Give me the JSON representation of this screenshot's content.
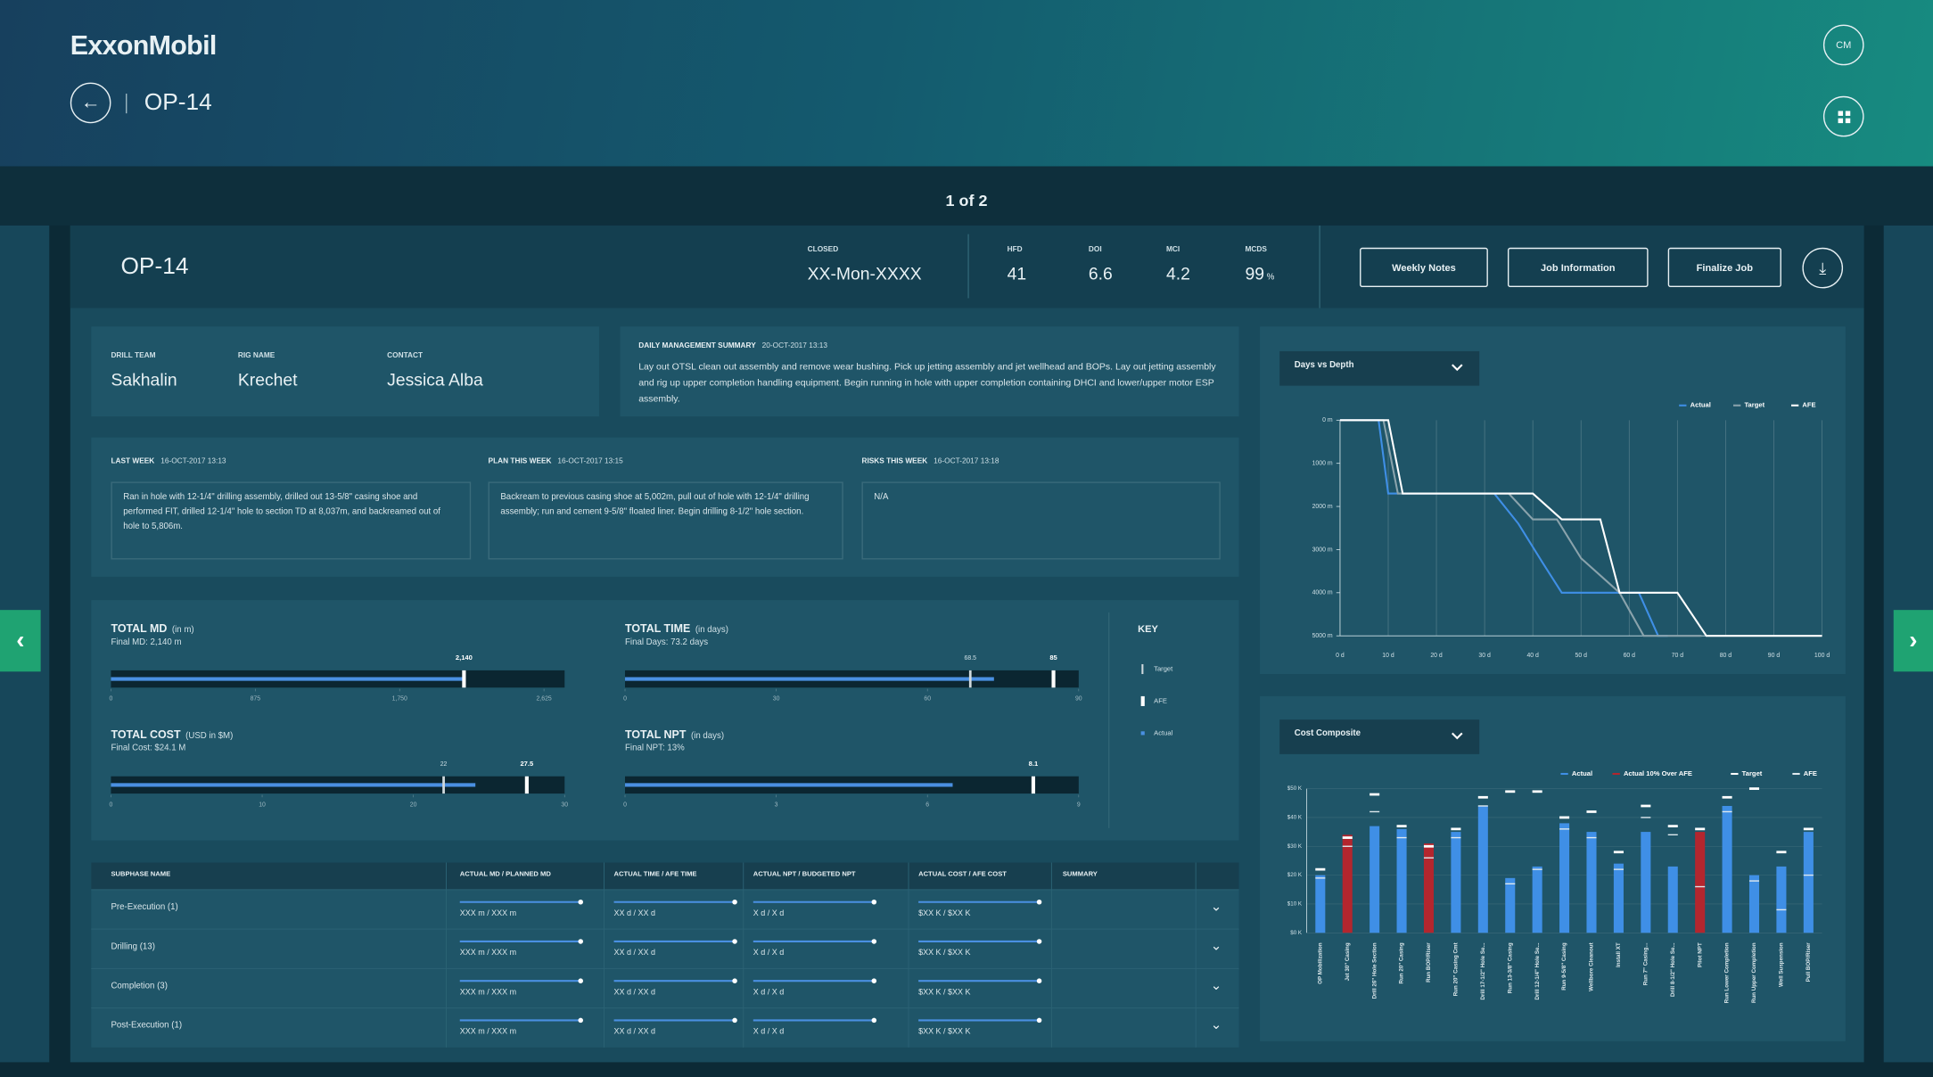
{
  "header": {
    "logo": "ExxonMobil",
    "title": "OP-14",
    "avatar": "CM"
  },
  "pager": "1 of 2",
  "summary_bar": {
    "well": "OP-14",
    "closed": {
      "label": "CLOSED",
      "value": "XX-Mon-XXXX"
    },
    "stats": [
      {
        "label": "HFD",
        "value": "41"
      },
      {
        "label": "DOI",
        "value": "6.6"
      },
      {
        "label": "MCI",
        "value": "4.2"
      },
      {
        "label": "MCDS",
        "value": "99",
        "unit": "%"
      }
    ],
    "buttons": [
      "Weekly Notes",
      "Job Information",
      "Finalize Job"
    ]
  },
  "team": [
    {
      "label": "DRILL TEAM",
      "value": "Sakhalin"
    },
    {
      "label": "RIG NAME",
      "value": "Krechet"
    },
    {
      "label": "CONTACT",
      "value": "Jessica Alba"
    }
  ],
  "daily_summary": {
    "label": "DAILY MANAGEMENT SUMMARY",
    "date": "20-OCT-2017 13:13",
    "text": "Lay out OTSL clean out assembly and remove wear bushing. Pick up jetting assembly and jet wellhead and BOPs. Lay out jetting assembly and rig up upper completion handling equipment. Begin running in hole with upper completion containing DHCI and lower/upper motor ESP assembly."
  },
  "weekly": [
    {
      "label": "LAST WEEK",
      "date": "16-OCT-2017 13:13",
      "text": "Ran in hole with 12-1/4\" drilling assembly, drilled out 13-5/8\" casing shoe and performed FIT, drilled 12-1/4\" hole to section TD at 8,037m, and backreamed out of hole to 5,806m."
    },
    {
      "label": "PLAN THIS WEEK",
      "date": "16-OCT-2017 13:15",
      "text": "Backream to previous casing shoe at 5,002m, pull out of hole with 12-1/4\" drilling assembly; run and cement 9-5/8\" floated liner. Begin drilling 8-1/2\" hole section."
    },
    {
      "label": "RISKS THIS WEEK",
      "date": "16-OCT-2017 13:18",
      "text": "N/A"
    }
  ],
  "progress": [
    {
      "title": "TOTAL MD",
      "unit": "(in m)",
      "subtitle": "Final MD: 2,140 m",
      "actual": 2140,
      "target": null,
      "afe": {
        "value": 2140,
        "label": "2,140"
      },
      "xlim": [
        0,
        2750
      ],
      "xticks": [
        0,
        875,
        {
          "value": 1750,
          "label": "1,750"
        },
        {
          "value": 2625,
          "label": "2,625"
        }
      ]
    },
    {
      "title": "TOTAL TIME",
      "unit": "(in days)",
      "subtitle": "Final Days: 73.2 days",
      "actual": 73.2,
      "target": 68.5,
      "afe": 85,
      "xlim": [
        0,
        90
      ],
      "xticks": [
        0,
        30,
        60,
        90
      ]
    },
    {
      "title": "TOTAL COST",
      "unit": "(USD in $M)",
      "subtitle": "Final Cost: $24.1 M",
      "actual": 24.1,
      "target": 22,
      "afe": 27.5,
      "xlim": [
        0,
        30
      ],
      "xticks": [
        0,
        10,
        20,
        30
      ]
    },
    {
      "title": "TOTAL NPT",
      "unit": "(in days)",
      "subtitle": "Final NPT: 13%",
      "actual": 6.5,
      "target": null,
      "afe": 8.1,
      "xlim": [
        0,
        9
      ],
      "xticks": [
        0,
        3,
        6,
        9
      ]
    }
  ],
  "key": {
    "title": "KEY",
    "items": [
      "Target",
      "AFE",
      "Actual"
    ]
  },
  "table": {
    "headers": [
      "SUBPHASE NAME",
      "ACTUAL MD / PLANNED MD",
      "ACTUAL TIME / AFE TIME",
      "ACTUAL NPT / BUDGETED NPT",
      "ACTUAL COST / AFE COST",
      "SUMMARY"
    ],
    "rows": [
      [
        "Pre-Execution (1)",
        "XXX m / XXX m",
        "XX d / XX d",
        "X d / X d",
        "$XX K / $XX K"
      ],
      [
        "Drilling (13)",
        "XXX m / XXX m",
        "XX d / XX d",
        "X d / X d",
        "$XX K / $XX K"
      ],
      [
        "Completion (3)",
        "XXX m / XXX m",
        "XX d / XX d",
        "X d / X d",
        "$XX K / $XX K"
      ],
      [
        "Post-Execution (1)",
        "XXX m / XXX m",
        "XX d / XX d",
        "X d / X d",
        "$XX K / $XX K"
      ]
    ]
  },
  "charts": {
    "days_vs_depth": {
      "type": "line",
      "dropdown": "Days vs Depth",
      "xlim": [
        0,
        100
      ],
      "xticks": [
        {
          "value": 0,
          "label": "0 d"
        },
        {
          "value": 10,
          "label": "10 d"
        },
        {
          "value": 20,
          "label": "20 d"
        },
        {
          "value": 30,
          "label": "30 d"
        },
        {
          "value": 40,
          "label": "40 d"
        },
        {
          "value": 50,
          "label": "50 d"
        },
        {
          "value": 60,
          "label": "60 d"
        },
        {
          "value": 70,
          "label": "70 d"
        },
        {
          "value": 80,
          "label": "80 d"
        },
        {
          "value": 90,
          "label": "90 d"
        },
        {
          "value": 100,
          "label": "100 d"
        }
      ],
      "ylim": [
        0,
        5000
      ],
      "y_inverted": true,
      "yticks": [
        {
          "value": 0,
          "label": "0 m"
        },
        {
          "value": 1000,
          "label": "1000 m"
        },
        {
          "value": 2000,
          "label": "2000 m"
        },
        {
          "value": 3000,
          "label": "3000 m"
        },
        {
          "value": 4000,
          "label": "4000 m"
        },
        {
          "value": 5000,
          "label": "5000 m"
        }
      ],
      "grid": true,
      "series": [
        {
          "name": "Actual",
          "color": "#3f8fe6",
          "x": [
            0,
            8,
            10,
            32,
            37,
            42,
            46,
            62,
            66,
            68
          ],
          "values": [
            0,
            0,
            1700,
            1700,
            2400,
            3300,
            4000,
            4000,
            5000,
            5000
          ]
        },
        {
          "name": "Target",
          "color": "#8aa3ac",
          "x": [
            0,
            9,
            12,
            35,
            40,
            45,
            50,
            58,
            63,
            75
          ],
          "values": [
            0,
            0,
            1700,
            1700,
            2300,
            2300,
            3200,
            4000,
            5000,
            5000
          ]
        },
        {
          "name": "AFE",
          "color": "#ffffff",
          "x": [
            0,
            10,
            13,
            40,
            46,
            54,
            58,
            70,
            76,
            100
          ],
          "values": [
            0,
            0,
            1700,
            1700,
            2300,
            2300,
            4000,
            4000,
            5000,
            5000
          ]
        }
      ]
    },
    "cost_composite": {
      "type": "bar",
      "dropdown": "Cost Composite",
      "categories": [
        "OP Mobilization",
        "Jet 30\" Casing",
        "Drill 26\" Hole Section",
        "Run 20\" Casing",
        "Run BOP/Riser",
        "Run 20\" Casing Cmt",
        "Drill 17-1/2\" Hole Se...",
        "Run 13-3/8\" Casing",
        "Drill 12-1/4\" Hole Se...",
        "Run 9-5/8\" Casing",
        "Wellbore Cleanout",
        "Install XT",
        "Run 7\" Casing...",
        "Drill 8-1/2\" Hole Se...",
        "Pilot NPT",
        "Run Lower Completion",
        "Run Upper Completion",
        "Well Suspension",
        "Pull BOP/Riser"
      ],
      "ylim": [
        0,
        50
      ],
      "yticks": [
        {
          "value": 0,
          "label": "$0 K"
        },
        {
          "value": 10,
          "label": "$10 K"
        },
        {
          "value": 20,
          "label": "$20 K"
        },
        {
          "value": 30,
          "label": "$30 K"
        },
        {
          "value": 40,
          "label": "$40 K"
        },
        {
          "value": 50,
          "label": "$50 K"
        }
      ],
      "series": [
        {
          "name": "Actual",
          "color": "#3f8fe6",
          "mark": "bar",
          "values": [
            20,
            null,
            37,
            36,
            null,
            35,
            44,
            19,
            23,
            38,
            35,
            24,
            35,
            23,
            null,
            44,
            20,
            23,
            35
          ]
        },
        {
          "name": "Actual 10% Over AFE",
          "color": "#b3262e",
          "mark": "bar",
          "values": [
            null,
            34,
            null,
            null,
            31,
            null,
            null,
            null,
            null,
            null,
            null,
            null,
            null,
            null,
            35,
            null,
            null,
            null,
            null
          ]
        },
        {
          "name": "Target",
          "color": "#ffffff",
          "mark": "dash",
          "values": [
            22,
            33,
            48,
            37,
            30,
            36,
            47,
            49,
            49,
            40,
            42,
            28,
            44,
            37,
            36,
            47,
            50,
            28,
            36
          ]
        },
        {
          "name": "AFE",
          "color": "#dfe9ee",
          "mark": "tick",
          "values": [
            19,
            30,
            42,
            33,
            26,
            33,
            44,
            17,
            22,
            36,
            33,
            22,
            40,
            34,
            16,
            42,
            18,
            8,
            20
          ]
        }
      ]
    }
  }
}
